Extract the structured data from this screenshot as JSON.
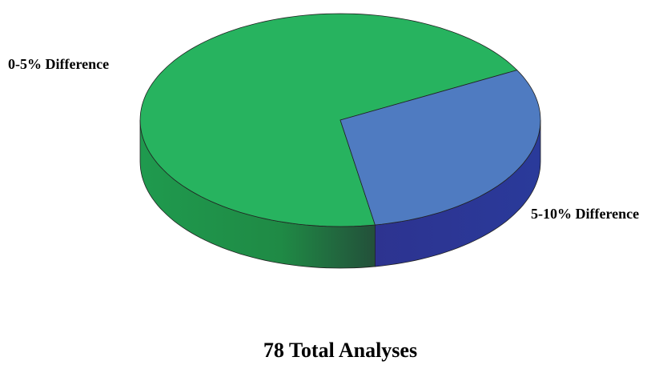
{
  "chart_data": {
    "type": "pie",
    "title": "78 Total Analyses",
    "categories": [
      "0-5% Difference",
      "5-10% Difference"
    ],
    "values": [
      70,
      30
    ],
    "colors": [
      "#27b35f",
      "#4f7bc1"
    ],
    "side_colors": [
      "#1f8f4b",
      "#2e3592"
    ]
  }
}
